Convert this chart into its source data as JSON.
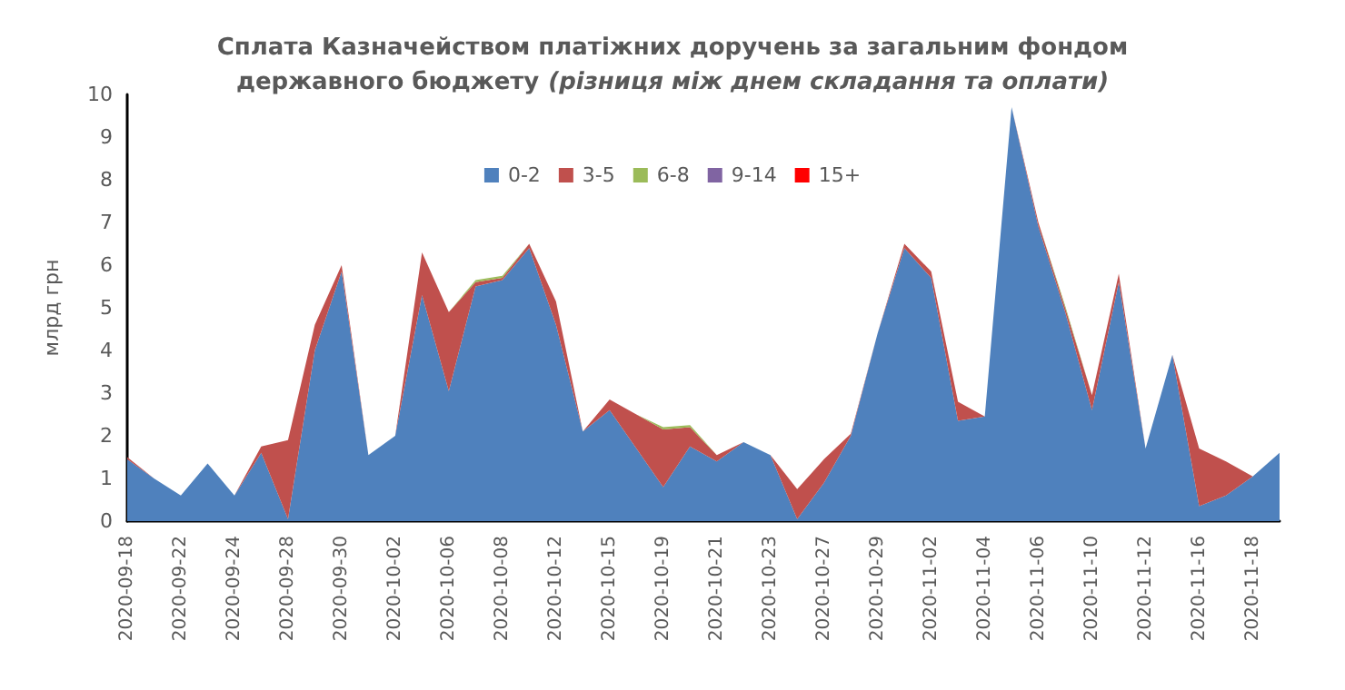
{
  "chart_data": {
    "type": "area",
    "stacked": true,
    "title": "Сплата Казначейством платіжних доручень за загальним фондом державного бюджету",
    "subtitle": "(різниця між днем складання та оплати)",
    "ylabel": "млрд грн",
    "categories": [
      "2020-09-18",
      null,
      "2020-09-22",
      null,
      "2020-09-24",
      null,
      "2020-09-28",
      null,
      "2020-09-30",
      null,
      "2020-10-02",
      null,
      "2020-10-06",
      null,
      "2020-10-08",
      null,
      "2020-10-12",
      null,
      "2020-10-15",
      null,
      "2020-10-19",
      null,
      "2020-10-21",
      null,
      "2020-10-23",
      null,
      "2020-10-27",
      null,
      "2020-10-29",
      null,
      "2020-11-02",
      null,
      "2020-11-04",
      null,
      "2020-11-06",
      null,
      "2020-11-10",
      null,
      "2020-11-12",
      null,
      "2020-11-16",
      null,
      "2020-11-18",
      null
    ],
    "series": [
      {
        "name": "0-2",
        "color": "#4f81bd",
        "values": [
          1.45,
          1.0,
          0.6,
          1.35,
          0.6,
          1.6,
          0.05,
          4.0,
          5.85,
          1.55,
          2.0,
          5.3,
          3.05,
          5.5,
          5.65,
          6.4,
          4.6,
          2.1,
          2.6,
          1.7,
          0.8,
          1.75,
          1.4,
          1.85,
          1.55,
          0.05,
          0.9,
          2.0,
          4.4,
          6.4,
          5.7,
          2.35,
          2.45,
          9.7,
          6.9,
          4.9,
          2.6,
          5.6,
          1.7,
          3.9,
          0.35,
          0.6,
          1.05,
          1.6
        ]
      },
      {
        "name": "3-5",
        "color": "#c0504d",
        "values": [
          0.05,
          0,
          0,
          0,
          0,
          0.15,
          1.85,
          0.6,
          0.15,
          0,
          0,
          1.0,
          1.85,
          0.1,
          0.05,
          0.1,
          0.55,
          0,
          0.25,
          0.8,
          1.35,
          0.45,
          0.15,
          0,
          0,
          0.7,
          0.55,
          0.05,
          0,
          0.1,
          0.15,
          0.45,
          0,
          0,
          0.1,
          0.1,
          0.35,
          0.2,
          0,
          0,
          1.35,
          0.8,
          0,
          0
        ]
      },
      {
        "name": "6-8",
        "color": "#9bbb59",
        "values": [
          0,
          0,
          0,
          0,
          0,
          0,
          0,
          0,
          0,
          0,
          0,
          0,
          0,
          0.05,
          0.05,
          0,
          0,
          0,
          0,
          0,
          0.05,
          0.05,
          0,
          0,
          0,
          0,
          0,
          0,
          0,
          0,
          0,
          0,
          0,
          0,
          0,
          0.05,
          0,
          0,
          0,
          0,
          0,
          0,
          0,
          0
        ]
      },
      {
        "name": "9-14",
        "color": "#8064a2",
        "values": [
          null,
          null,
          null,
          null,
          null,
          null,
          null,
          null,
          null,
          null,
          null,
          null,
          null,
          null,
          null,
          null,
          null,
          null,
          null,
          null,
          null,
          null,
          null,
          null,
          null,
          null,
          null,
          null,
          null,
          null,
          null,
          null,
          null,
          null,
          null,
          null,
          null,
          null,
          null,
          null,
          null,
          null,
          null,
          null
        ]
      },
      {
        "name": "15+",
        "color": "#ff0000",
        "values": [
          null,
          null,
          null,
          null,
          null,
          null,
          null,
          null,
          null,
          null,
          null,
          null,
          null,
          null,
          null,
          null,
          null,
          null,
          null,
          null,
          null,
          null,
          null,
          null,
          null,
          null,
          null,
          null,
          null,
          null,
          null,
          null,
          null,
          null,
          null,
          null,
          null,
          null,
          null,
          null,
          null,
          null,
          null,
          null
        ]
      }
    ],
    "ylim": [
      0,
      10
    ],
    "yticks": [
      0,
      1,
      2,
      3,
      4,
      5,
      6,
      7,
      8,
      9,
      10
    ],
    "grid": false,
    "legend": "top",
    "marker": "none"
  }
}
